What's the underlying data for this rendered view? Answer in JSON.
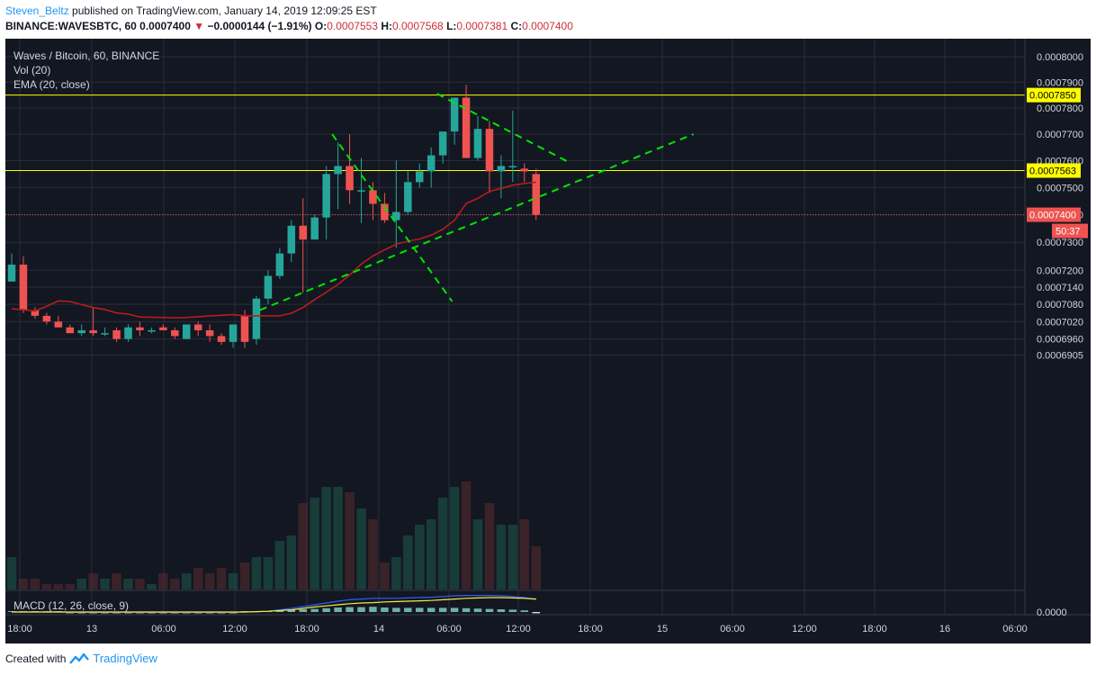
{
  "header": {
    "author": "Steven_Beltz",
    "published": " published on TradingView.com, January 14, 2019 12:09:25 EST",
    "symbol": "BINANCE:WAVESBTC, 60",
    "last": "0.0007400",
    "change": "−0.0000144 (−1.91%)",
    "o_label": "O:",
    "o": "0.0007553",
    "h_label": "H:",
    "h": "0.0007568",
    "l_label": "L:",
    "l": "0.0007381",
    "c_label": "C:",
    "c": "0.0007400"
  },
  "legend": {
    "title": "Waves / Bitcoin, 60, BINANCE",
    "vol": "Vol (20)",
    "ema": "EMA (20, close)",
    "macd": "MACD (12, 26, close, 9)"
  },
  "footer": {
    "created": "Created with",
    "brand": "TradingView"
  },
  "colors": {
    "background": "#131722",
    "grid": "#2a2e39",
    "up": "#26a69a",
    "down": "#ef5350",
    "ema": "#b71c1c",
    "level": "#ffff00",
    "trend": "#00e600",
    "last_price": "#ef5350",
    "macd": "#2962ff",
    "signal": "#ffeb3b"
  },
  "chart_data": {
    "type": "candlestick",
    "interval": "60",
    "y_scale": "log",
    "ylim": [
      0.000686,
      0.000809
    ],
    "price_ticks": [
      "0.0008000",
      "0.0007900",
      "0.0007800",
      "0.0007700",
      "0.0007600",
      "0.0007500",
      "0.0007400",
      "0.0007300",
      "0.0007200",
      "0.0007140",
      "0.0007080",
      "0.0007020",
      "0.0006960",
      "0.0006905"
    ],
    "macd_tick": "0.0000",
    "time_labels": [
      "18:00",
      "13",
      "06:00",
      "12:00",
      "18:00",
      "14",
      "06:00",
      "12:00",
      "18:00",
      "15",
      "06:00",
      "12:00",
      "18:00",
      "16",
      "06:00"
    ],
    "horizontal_levels": [
      {
        "label": "0.0007850",
        "value": 0.000785
      },
      {
        "label": "0.0007563",
        "value": 0.0007563
      }
    ],
    "last_price": {
      "label": "0.0007400",
      "value": 0.00074,
      "countdown": "50:37"
    },
    "candles_ohlc": [
      [
        0.000716,
        0.000726,
        0.000716,
        0.000722
      ],
      [
        0.000722,
        0.000725,
        0.000705,
        0.000706
      ],
      [
        0.000706,
        0.000707,
        0.000703,
        0.000704
      ],
      [
        0.000704,
        0.000705,
        0.000701,
        0.000702
      ],
      [
        0.000702,
        0.000704,
        0.0007,
        0.0007
      ],
      [
        0.0007,
        0.000701,
        0.000698,
        0.000698
      ],
      [
        0.000698,
        0.000701,
        0.000697,
        0.000699
      ],
      [
        0.000699,
        0.000707,
        0.000697,
        0.000698
      ],
      [
        0.000698,
        0.0007,
        0.000697,
        0.000698
      ],
      [
        0.000699,
        0.0007,
        0.000695,
        0.000696
      ],
      [
        0.000696,
        0.000701,
        0.000695,
        0.0007
      ],
      [
        0.0007,
        0.000702,
        0.000697,
        0.000699
      ],
      [
        0.000699,
        0.0007,
        0.000698,
        0.000699
      ],
      [
        0.0007,
        0.000701,
        0.000699,
        0.000699
      ],
      [
        0.000699,
        0.0007,
        0.000696,
        0.000697
      ],
      [
        0.000696,
        0.000701,
        0.000696,
        0.000701
      ],
      [
        0.000701,
        0.000702,
        0.000697,
        0.000699
      ],
      [
        0.000699,
        0.000701,
        0.000695,
        0.000697
      ],
      [
        0.000697,
        0.000698,
        0.000694,
        0.000695
      ],
      [
        0.000695,
        0.000701,
        0.000693,
        0.000701
      ],
      [
        0.000704,
        0.000706,
        0.000693,
        0.000695
      ],
      [
        0.000696,
        0.000711,
        0.000694,
        0.00071
      ],
      [
        0.00071,
        0.00072,
        0.000708,
        0.000718
      ],
      [
        0.000718,
        0.000728,
        0.000717,
        0.000726
      ],
      [
        0.000726,
        0.000738,
        0.000723,
        0.000736
      ],
      [
        0.000736,
        0.000746,
        0.000712,
        0.000731
      ],
      [
        0.000731,
        0.00074,
        0.000731,
        0.000739
      ],
      [
        0.000739,
        0.000758,
        0.000731,
        0.000755
      ],
      [
        0.000755,
        0.000767,
        0.000742,
        0.000758
      ],
      [
        0.000758,
        0.00077,
        0.000744,
        0.000749
      ],
      [
        0.000749,
        0.000761,
        0.000737,
        0.000749
      ],
      [
        0.000749,
        0.000752,
        0.000738,
        0.000744
      ],
      [
        0.000744,
        0.000748,
        0.000737,
        0.000738
      ],
      [
        0.000738,
        0.00076,
        0.000728,
        0.000741
      ],
      [
        0.000741,
        0.000756,
        0.00074,
        0.000752
      ],
      [
        0.000752,
        0.000759,
        0.00075,
        0.000756
      ],
      [
        0.000756,
        0.000765,
        0.00075,
        0.000762
      ],
      [
        0.000762,
        0.00077,
        0.000759,
        0.000771
      ],
      [
        0.000771,
        0.000781,
        0.000766,
        0.000784
      ],
      [
        0.000784,
        0.000789,
        0.000762,
        0.000761
      ],
      [
        0.000761,
        0.000777,
        0.00076,
        0.000772
      ],
      [
        0.000772,
        0.000775,
        0.000748,
        0.000756
      ],
      [
        0.000756,
        0.000762,
        0.000746,
        0.000758
      ],
      [
        0.000758,
        0.000779,
        0.000752,
        0.000758
      ],
      [
        0.000757,
        0.000759,
        0.000752,
        0.000756
      ],
      [
        0.000755,
        0.000757,
        0.000738,
        0.00074
      ]
    ],
    "volume": [
      6,
      2,
      2,
      1,
      1,
      1,
      2,
      3,
      2,
      3,
      2,
      2,
      1,
      3,
      2,
      3,
      4,
      3,
      4,
      3,
      5,
      6,
      6,
      9,
      10,
      16,
      17,
      19,
      19,
      18,
      15,
      13,
      5,
      6,
      10,
      12,
      13,
      17,
      19,
      20,
      13,
      16,
      12,
      12,
      13,
      8
    ],
    "ema20": [
      0.0007064,
      0.0007061,
      0.0007057,
      0.0007073,
      0.0007092,
      0.000709,
      0.0007079,
      0.0007069,
      0.0007062,
      0.000705,
      0.0007046,
      0.0007036,
      0.0007035,
      0.0007034,
      0.0007033,
      0.0007034,
      0.0007037,
      0.000704,
      0.0007042,
      0.0007044,
      0.000704,
      0.000704,
      0.000704,
      0.000704,
      0.0007049,
      0.0007069,
      0.0007097,
      0.0007122,
      0.000715,
      0.0007183,
      0.0007222,
      0.0007251,
      0.0007273,
      0.0007293,
      0.0007304,
      0.0007312,
      0.0007326,
      0.0007347,
      0.000738,
      0.0007441,
      0.000746,
      0.0007486,
      0.0007497,
      0.0007509,
      0.0007515,
      0.000752
    ],
    "macd_line": [
      0,
      0,
      0,
      0,
      0,
      -0.1,
      -0.1,
      -0.1,
      -0.1,
      -0.1,
      -0.1,
      -0.1,
      -0.1,
      -0.1,
      -0.1,
      -0.1,
      -0.1,
      -0.1,
      -0.1,
      -0.1,
      0,
      0.1,
      0.2,
      0.6,
      1.0,
      1.5,
      2.0,
      2.5,
      3.0,
      3.4,
      3.6,
      3.8,
      3.8,
      3.8,
      3.9,
      4.0,
      4.1,
      4.3,
      4.5,
      4.6,
      4.6,
      4.6,
      4.5,
      4.3,
      4.0,
      3.5
    ],
    "signal_line": [
      0,
      0,
      0,
      0,
      0,
      0,
      0,
      0,
      0,
      0,
      0,
      0,
      0,
      0,
      0,
      0,
      0,
      0,
      0,
      0,
      0,
      0.1,
      0.2,
      0.4,
      0.6,
      1.0,
      1.4,
      1.7,
      2.0,
      2.3,
      2.5,
      2.6,
      2.8,
      2.9,
      3.0,
      3.1,
      3.2,
      3.4,
      3.6,
      3.8,
      3.9,
      4.0,
      4.0,
      3.9,
      3.8,
      3.6
    ],
    "trendlines": [
      {
        "style": "dashed",
        "points": [
          [
            21.3,
            0.000706
          ],
          [
            58.5,
            0.00077
          ]
        ]
      },
      {
        "style": "dashed",
        "points": [
          [
            27.5,
            0.00077
          ],
          [
            37.8,
            0.000709
          ]
        ]
      },
      {
        "style": "dashed",
        "points": [
          [
            36.5,
            0.0007855
          ],
          [
            48.0,
            0.000759
          ]
        ]
      }
    ]
  }
}
